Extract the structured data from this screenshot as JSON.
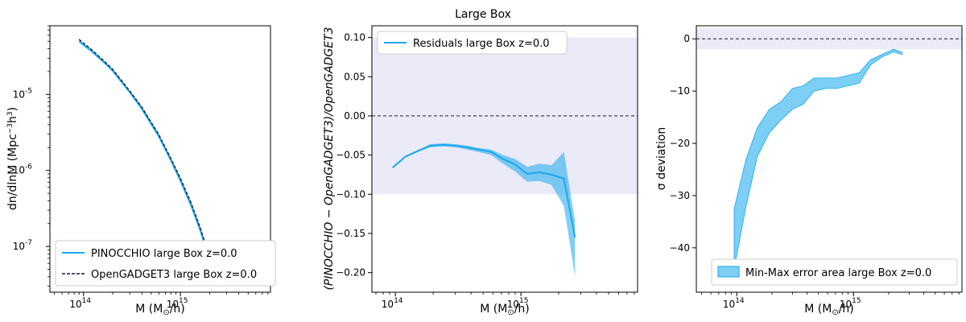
{
  "colors": {
    "pinocchio": "#1aa7ec",
    "gadget": "#0a1a3a",
    "band": "#eaeaf8",
    "fill": "#7dcff5",
    "zero": "#000000"
  },
  "chart_data": [
    {
      "type": "line",
      "panel": "mass-function",
      "title": "",
      "xlabel": "M (M_⊙/h)",
      "ylabel": "dn/dlnM (Mpc^-3 h^3)",
      "xscale": "log",
      "yscale": "log",
      "xlim": [
        45000000000000.0,
        8500000000000000.0
      ],
      "ylim": [
        2.5e-08,
        8e-05
      ],
      "xticks": [
        {
          "label": "10",
          "exp": "14",
          "value": 100000000000000.0
        },
        {
          "label": "10",
          "exp": "15",
          "value": 1000000000000000.0
        }
      ],
      "yticks": [
        {
          "label": "10",
          "exp": "-5",
          "value": 1e-05
        },
        {
          "label": "10",
          "exp": "-6",
          "value": 1e-06
        },
        {
          "label": "10",
          "exp": "-7",
          "value": 1e-07
        }
      ],
      "legend_position": "lower-left",
      "series": [
        {
          "name": "PINOCCHIO large Box z=0.0",
          "style": "solid",
          "x": [
            90000000000000.0,
            120000000000000.0,
            160000000000000.0,
            200000000000000.0,
            300000000000000.0,
            400000000000000.0,
            600000000000000.0,
            800000000000000.0,
            1000000000000000.0,
            1300000000000000.0,
            1600000000000000.0,
            2000000000000000.0,
            2400000000000000.0
          ],
          "y": [
            5e-05,
            3.75e-05,
            2.7e-05,
            2.05e-05,
            1.07e-05,
            6.5e-06,
            2.8e-06,
            1.35e-06,
            7.4e-07,
            3.4e-07,
            1.65e-07,
            6.6e-08,
            3e-08
          ]
        },
        {
          "name": "OpenGADGET3 large Box z=0.0",
          "style": "dashed",
          "x": [
            90000000000000.0,
            120000000000000.0,
            160000000000000.0,
            200000000000000.0,
            300000000000000.0,
            400000000000000.0,
            600000000000000.0,
            800000000000000.0,
            1000000000000000.0,
            1300000000000000.0,
            1600000000000000.0,
            2000000000000000.0,
            2400000000000000.0
          ],
          "y": [
            5.3e-05,
            3.92e-05,
            2.82e-05,
            2.14e-05,
            1.11e-05,
            6.8e-06,
            2.95e-06,
            1.42e-06,
            7.9e-07,
            3.65e-07,
            1.77e-07,
            7.3e-08,
            3.3e-08
          ]
        }
      ]
    },
    {
      "type": "line",
      "panel": "residuals",
      "title": "Large Box",
      "xlabel": "M (M_⊙/h)",
      "ylabel": "(PINOCCHIO − OpenGADGET3)/OpenGADGET3",
      "xscale": "log",
      "xlim": [
        65000000000000.0,
        8500000000000000.0
      ],
      "ylim": [
        -0.225,
        0.115
      ],
      "xticks": [
        {
          "label": "10",
          "exp": "14",
          "value": 100000000000000.0
        },
        {
          "label": "10",
          "exp": "15",
          "value": 1000000000000000.0
        }
      ],
      "yticks": [
        "0.10",
        "0.05",
        "0.00",
        "−0.05",
        "−0.10",
        "−0.15",
        "−0.20"
      ],
      "ytick_values": [
        0.1,
        0.05,
        0.0,
        -0.05,
        -0.1,
        -0.15,
        -0.2
      ],
      "band": [
        -0.1,
        0.1
      ],
      "zero_line": 0.0,
      "legend_position": "top-left",
      "series": [
        {
          "name": "Residuals large Box z=0.0",
          "x": [
            95000000000000.0,
            120000000000000.0,
            150000000000000.0,
            190000000000000.0,
            240000000000000.0,
            300000000000000.0,
            370000000000000.0,
            460000000000000.0,
            580000000000000.0,
            720000000000000.0,
            900000000000000.0,
            1120000000000000.0,
            1400000000000000.0,
            1750000000000000.0,
            2200000000000000.0,
            2700000000000000.0
          ],
          "y": [
            -0.066,
            -0.052,
            -0.045,
            -0.038,
            -0.037,
            -0.038,
            -0.04,
            -0.043,
            -0.046,
            -0.055,
            -0.062,
            -0.074,
            -0.072,
            -0.075,
            -0.08,
            -0.155
          ],
          "upper": [
            -0.066,
            -0.051,
            -0.044,
            -0.036,
            -0.035,
            -0.036,
            -0.038,
            -0.041,
            -0.043,
            -0.05,
            -0.055,
            -0.065,
            -0.061,
            -0.063,
            -0.046,
            -0.135
          ],
          "lower": [
            -0.066,
            -0.053,
            -0.046,
            -0.04,
            -0.039,
            -0.04,
            -0.043,
            -0.046,
            -0.05,
            -0.061,
            -0.071,
            -0.084,
            -0.083,
            -0.088,
            -0.115,
            -0.205
          ]
        }
      ]
    },
    {
      "type": "area",
      "panel": "sigma-deviation",
      "title": "",
      "xlabel": "M (M_⊙/h)",
      "ylabel": "σ deviation",
      "xscale": "log",
      "xlim": [
        45000000000000.0,
        8500000000000000.0
      ],
      "ylim": [
        -48.5,
        2.5
      ],
      "xticks": [
        {
          "label": "10",
          "exp": "14",
          "value": 100000000000000.0
        },
        {
          "label": "10",
          "exp": "15",
          "value": 1000000000000000.0
        }
      ],
      "yticks": [
        "0",
        "−10",
        "−20",
        "−30",
        "−40"
      ],
      "ytick_values": [
        0,
        -10,
        -20,
        -30,
        -40
      ],
      "band": [
        -2,
        2
      ],
      "zero_line": 0,
      "legend_position": "bottom-right",
      "series": [
        {
          "name": "Min-Max error area large Box z=0.0",
          "x": [
            95000000000000.0,
            120000000000000.0,
            150000000000000.0,
            190000000000000.0,
            240000000000000.0,
            300000000000000.0,
            370000000000000.0,
            460000000000000.0,
            580000000000000.0,
            720000000000000.0,
            900000000000000.0,
            1120000000000000.0,
            1400000000000000.0,
            1750000000000000.0,
            2200000000000000.0,
            2600000000000000.0
          ],
          "upper": [
            -32.5,
            -23,
            -17,
            -13.5,
            -12,
            -9.5,
            -9,
            -7.5,
            -7.5,
            -7.5,
            -7,
            -6.5,
            -4,
            -3,
            -2,
            -2.5
          ],
          "lower": [
            -44,
            -32,
            -22.5,
            -18,
            -15.5,
            -13.5,
            -12.5,
            -10,
            -9.5,
            -9.5,
            -9,
            -8.5,
            -5,
            -3.5,
            -2.5,
            -3
          ]
        }
      ]
    }
  ]
}
